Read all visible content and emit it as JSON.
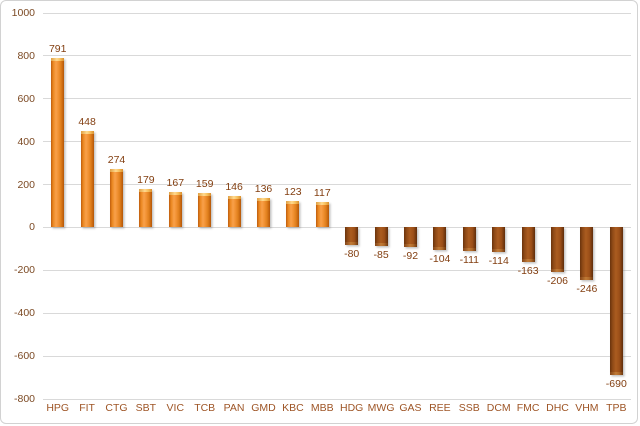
{
  "chart_data": {
    "type": "bar",
    "categories": [
      "HPG",
      "FIT",
      "CTG",
      "SBT",
      "VIC",
      "TCB",
      "PAN",
      "GMD",
      "KBC",
      "MBB",
      "HDG",
      "MWG",
      "GAS",
      "REE",
      "SSB",
      "DCM",
      "FMC",
      "DHC",
      "VHM",
      "TPB"
    ],
    "values": [
      791,
      448,
      274,
      179,
      167,
      159,
      146,
      136,
      123,
      117,
      -80,
      -85,
      -92,
      -104,
      -111,
      -114,
      -163,
      -206,
      -246,
      -690
    ],
    "title": "",
    "xlabel": "",
    "ylabel": "",
    "ylim": [
      -800,
      1000
    ],
    "ytick_step": 200,
    "ytick_labels": [
      "1000",
      "800",
      "600",
      "400",
      "200",
      "0",
      "-200",
      "-400",
      "-600",
      "-800"
    ],
    "grid": true,
    "legend": false,
    "data_labels": true
  },
  "colors": {
    "positive_bar_mid": "#f9a04a",
    "positive_bar_edge": "#b55708",
    "positive_bar_cap": "#ffd98e",
    "negative_bar_mid": "#ab5c20",
    "negative_bar_edge": "#5f2d0b",
    "negative_bar_cap": "#c07a36",
    "data_label_text": "#823e10",
    "y_axis_text": "#7c4a24",
    "x_axis_text": "#9e5526",
    "gridline": "#d9d9d9",
    "chart_border": "#d2d2d2",
    "background": "#ffffff"
  }
}
